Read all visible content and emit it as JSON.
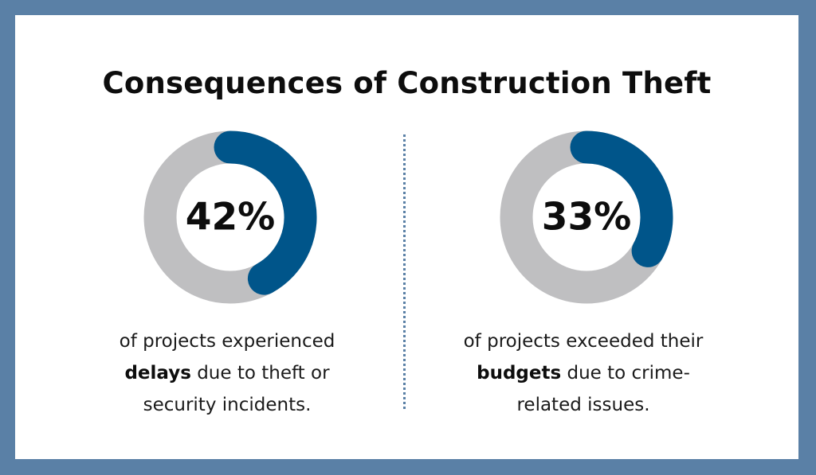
{
  "title": "Consequences of Construction Theft",
  "colors": {
    "frame": "#5a80a6",
    "accent": "#00558a",
    "track": "#bfbfc1",
    "background": "#ffffff"
  },
  "chart_data": [
    {
      "type": "pie",
      "variant": "donut",
      "value_label": "42%",
      "slices": [
        {
          "value": 42,
          "color": "#00558a"
        },
        {
          "value": 58,
          "color": "#bfbfc1"
        }
      ],
      "caption": {
        "line1": "of projects experienced",
        "bold": "delays",
        "rest_line2": " due to theft or",
        "line3": "security incidents."
      }
    },
    {
      "type": "pie",
      "variant": "donut",
      "value_label": "33%",
      "slices": [
        {
          "value": 33,
          "color": "#00558a"
        },
        {
          "value": 67,
          "color": "#bfbfc1"
        }
      ],
      "caption": {
        "line1": "of projects exceeded their",
        "bold": "budgets",
        "rest_line2": " due to crime-",
        "line3": "related issues."
      }
    }
  ]
}
